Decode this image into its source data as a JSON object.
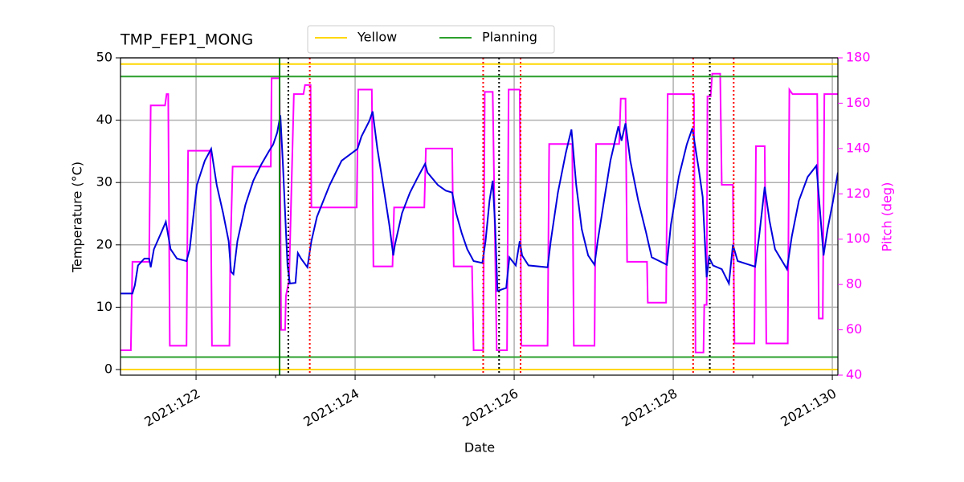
{
  "chart_data": {
    "type": "line",
    "title": "TMP_FEP1_MONG",
    "xlabel": "Date",
    "ylabel": "Temperature (°C)",
    "y2label": "Pitch (deg)",
    "y2color": "#ff00ff",
    "xlim": [
      121.05,
      130.07
    ],
    "ylim": [
      -0.9,
      50
    ],
    "y2lim": [
      40,
      180
    ],
    "xticks": [
      {
        "value": 122,
        "label": "2021:122"
      },
      {
        "value": 124,
        "label": "2021:124"
      },
      {
        "value": 126,
        "label": "2021:126"
      },
      {
        "value": 128,
        "label": "2021:128"
      },
      {
        "value": 130,
        "label": "2021:130"
      }
    ],
    "xminorticks": [
      123,
      125,
      127,
      129
    ],
    "yticks": [
      0,
      10,
      20,
      30,
      40,
      50
    ],
    "y2ticks": [
      40,
      60,
      80,
      100,
      120,
      140,
      160,
      180
    ],
    "grid": true,
    "legend": "top",
    "limits": [
      {
        "name": "Yellow",
        "color": "#ffd700",
        "values": [
          0,
          49
        ]
      },
      {
        "name": "Planning",
        "color": "#2ca02c",
        "values": [
          2,
          47
        ]
      }
    ],
    "vlines": [
      {
        "color": "#008000",
        "style": "solid",
        "values": [
          123.05
        ]
      },
      {
        "color": "#000000",
        "style": "dotted",
        "values": [
          123.16,
          125.81,
          128.46
        ]
      },
      {
        "color": "#ff0000",
        "style": "dotted",
        "values": [
          123.43,
          125.61,
          126.08,
          128.25,
          128.76
        ]
      }
    ],
    "series": [
      {
        "color": "#0000dd",
        "x": [
          121.05,
          121.2,
          121.23,
          121.27,
          121.35,
          121.41,
          121.43,
          121.47,
          121.56,
          121.62,
          121.68,
          121.76,
          121.88,
          121.92,
          122.01,
          122.11,
          122.19,
          122.26,
          122.34,
          122.41,
          122.44,
          122.47,
          122.52,
          122.62,
          122.72,
          122.82,
          122.92,
          122.97,
          123.02,
          123.06,
          123.09,
          123.15,
          123.18,
          123.25,
          123.28,
          123.32,
          123.4,
          123.45,
          123.52,
          123.68,
          123.83,
          124.03,
          124.08,
          124.18,
          124.22,
          124.28,
          124.36,
          124.43,
          124.48,
          124.5,
          124.59,
          124.69,
          124.79,
          124.88,
          124.91,
          125.04,
          125.14,
          125.22,
          125.27,
          125.34,
          125.41,
          125.49,
          125.6,
          125.64,
          125.69,
          125.73,
          125.76,
          125.79,
          125.9,
          125.94,
          126.02,
          126.07,
          126.1,
          126.18,
          126.42,
          126.46,
          126.55,
          126.65,
          126.72,
          126.78,
          126.85,
          126.93,
          127.01,
          127.05,
          127.13,
          127.21,
          127.31,
          127.35,
          127.4,
          127.46,
          127.56,
          127.66,
          127.69,
          127.73,
          127.92,
          127.97,
          128.07,
          128.17,
          128.24,
          128.32,
          128.37,
          128.42,
          128.45,
          128.5,
          128.61,
          128.7,
          128.75,
          128.81,
          129.03,
          129.08,
          129.15,
          129.21,
          129.28,
          129.43,
          129.49,
          129.58,
          129.69,
          129.8,
          129.89,
          129.94,
          130.01,
          130.07
        ],
        "values": [
          12.2,
          12.2,
          13.5,
          16.7,
          17.8,
          17.8,
          16.4,
          19.3,
          21.9,
          23.7,
          19.3,
          17.8,
          17.4,
          19.3,
          29.6,
          33.5,
          35.4,
          29.6,
          25.1,
          20.6,
          15.7,
          15.3,
          20.6,
          26.4,
          30.3,
          32.9,
          35.1,
          36.1,
          38.0,
          40.8,
          33.5,
          16.7,
          13.8,
          13.9,
          18.7,
          17.8,
          16.4,
          20.6,
          24.5,
          29.6,
          33.5,
          35.4,
          37.4,
          39.9,
          41.4,
          35.4,
          29.0,
          23.2,
          18.3,
          20.0,
          25.1,
          28.4,
          30.9,
          33.0,
          31.6,
          29.6,
          28.7,
          28.4,
          25.1,
          21.9,
          19.3,
          17.4,
          17.1,
          20.6,
          27.1,
          30.3,
          23.2,
          12.6,
          13.1,
          18.0,
          16.7,
          20.6,
          18.3,
          16.7,
          16.4,
          20.6,
          28.4,
          34.8,
          38.5,
          29.6,
          22.5,
          18.3,
          16.8,
          20.6,
          27.1,
          33.5,
          39.0,
          36.7,
          39.5,
          33.5,
          27.1,
          21.9,
          20.2,
          18.0,
          16.8,
          23.2,
          30.9,
          36.1,
          38.7,
          32.2,
          27.7,
          14.8,
          18.0,
          16.7,
          16.1,
          13.8,
          20.0,
          17.4,
          16.5,
          21.4,
          29.3,
          23.9,
          19.3,
          16.1,
          21.3,
          27.1,
          30.9,
          32.7,
          18.3,
          22.5,
          27.1,
          31.6
        ]
      },
      {
        "color": "#ff00ff",
        "axis": "y2",
        "x": [
          121.05,
          121.18,
          121.2,
          121.41,
          121.43,
          121.61,
          121.63,
          121.65,
          121.67,
          121.88,
          121.9,
          122.18,
          122.2,
          122.42,
          122.43,
          122.46,
          122.94,
          122.95,
          123.05,
          123.07,
          123.12,
          123.13,
          123.17,
          123.23,
          123.35,
          123.37,
          123.44,
          123.45,
          124.02,
          124.04,
          124.21,
          124.23,
          124.47,
          124.49,
          124.87,
          124.89,
          125.22,
          125.24,
          125.47,
          125.49,
          125.61,
          125.63,
          125.73,
          125.78,
          125.91,
          125.93,
          126.07,
          126.09,
          126.42,
          126.44,
          126.73,
          126.75,
          127.01,
          127.03,
          127.32,
          127.34,
          127.4,
          127.42,
          127.67,
          127.68,
          127.91,
          127.93,
          128.26,
          128.28,
          128.38,
          128.39,
          128.42,
          128.43,
          128.47,
          128.49,
          128.59,
          128.61,
          128.75,
          128.77,
          129.02,
          129.04,
          129.15,
          129.17,
          129.44,
          129.46,
          129.5,
          129.81,
          129.83,
          129.88,
          129.9,
          130.07
        ],
        "values": [
          51,
          51,
          90,
          90,
          159,
          159,
          164,
          164,
          53,
          53,
          139,
          139,
          53,
          53,
          92,
          132,
          132,
          171,
          171,
          60,
          60,
          75,
          82,
          164,
          164,
          168,
          168,
          114,
          114,
          166,
          166,
          88,
          88,
          114,
          114,
          140,
          140,
          88,
          88,
          51,
          51,
          165,
          165,
          51,
          51,
          166,
          166,
          53,
          53,
          142,
          142,
          53,
          53,
          142,
          142,
          162,
          162,
          90,
          90,
          72,
          72,
          164,
          164,
          50,
          50,
          71,
          71,
          163,
          163,
          173,
          173,
          124,
          124,
          54,
          54,
          141,
          141,
          54,
          54,
          166,
          164,
          164,
          65,
          65,
          164,
          164
        ]
      }
    ]
  }
}
